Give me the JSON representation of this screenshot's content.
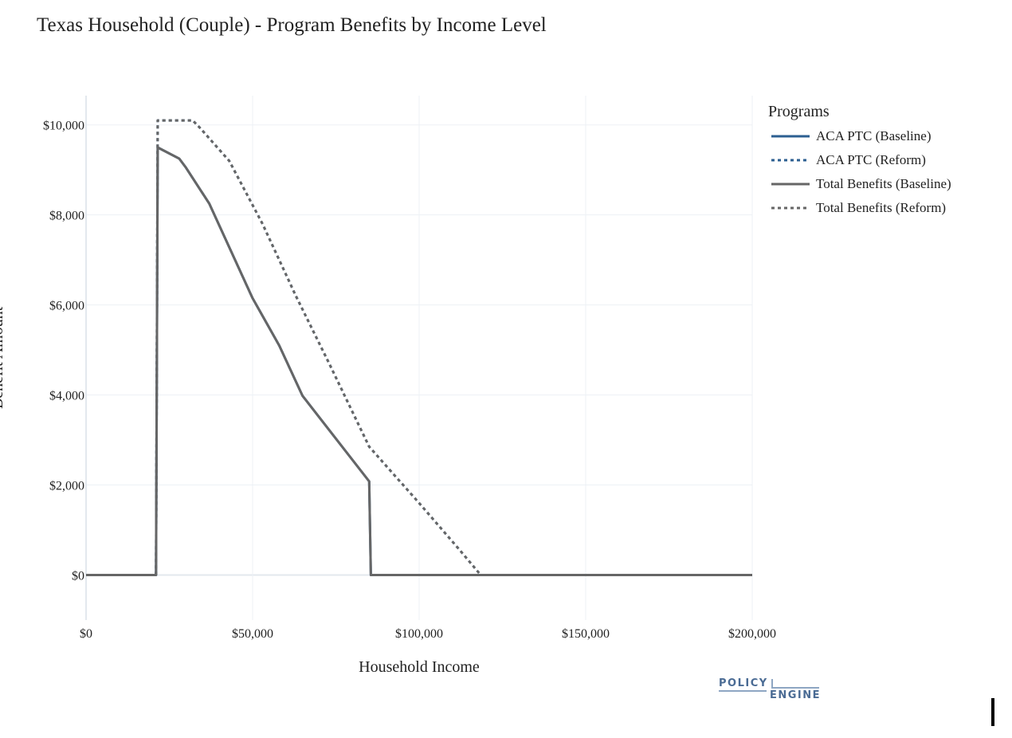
{
  "chart_data": {
    "type": "line",
    "title": "Texas Household (Couple) - Program Benefits by Income Level",
    "xlabel": "Household Income",
    "ylabel": "Benefit Amount",
    "xlim": [
      0,
      200000
    ],
    "ylim": [
      -1000,
      10650
    ],
    "x_ticks": [
      {
        "value": 0,
        "label": "$0"
      },
      {
        "value": 50000,
        "label": "$50,000"
      },
      {
        "value": 100000,
        "label": "$100,000"
      },
      {
        "value": 150000,
        "label": "$150,000"
      },
      {
        "value": 200000,
        "label": "$200,000"
      }
    ],
    "y_ticks": [
      {
        "value": 0,
        "label": "$0"
      },
      {
        "value": 2000,
        "label": "$2,000"
      },
      {
        "value": 4000,
        "label": "$4,000"
      },
      {
        "value": 6000,
        "label": "$6,000"
      },
      {
        "value": 8000,
        "label": "$8,000"
      },
      {
        "value": 10000,
        "label": "$10,000"
      }
    ],
    "grid": true,
    "legend": {
      "title": "Programs",
      "placement": "right"
    },
    "series": [
      {
        "name": "ACA PTC (Baseline)",
        "color": "#2c5f91",
        "dash": "solid",
        "x": [
          0,
          21000,
          21500,
          28000,
          30000,
          37000,
          50000,
          58000,
          65000,
          85000,
          85500,
          200000
        ],
        "y": [
          0,
          0,
          9500,
          9250,
          9050,
          8250,
          6150,
          5100,
          3980,
          2080,
          0,
          0
        ]
      },
      {
        "name": "ACA PTC (Reform)",
        "color": "#2c5f91",
        "dash": "dot",
        "x": [
          0,
          21000,
          21500,
          32000,
          34000,
          43000,
          53000,
          63000,
          73000,
          85000,
          100000,
          112000,
          118500,
          200000
        ],
        "y": [
          0,
          0,
          10100,
          10100,
          9950,
          9200,
          7800,
          6200,
          4700,
          2850,
          1600,
          570,
          0,
          0
        ]
      },
      {
        "name": "Total Benefits (Baseline)",
        "color": "#666666",
        "dash": "solid",
        "x": [
          0,
          21000,
          21500,
          28000,
          30000,
          37000,
          50000,
          58000,
          65000,
          85000,
          85500,
          200000
        ],
        "y": [
          0,
          0,
          9500,
          9250,
          9050,
          8250,
          6150,
          5100,
          3980,
          2080,
          0,
          0
        ]
      },
      {
        "name": "Total Benefits (Reform)",
        "color": "#666666",
        "dash": "dot",
        "x": [
          0,
          21000,
          21500,
          32000,
          34000,
          43000,
          53000,
          63000,
          73000,
          85000,
          100000,
          112000,
          118500,
          200000
        ],
        "y": [
          0,
          0,
          10100,
          10100,
          9950,
          9200,
          7800,
          6200,
          4700,
          2850,
          1600,
          570,
          0,
          0
        ]
      }
    ]
  },
  "logo": {
    "top": "POLICY",
    "bottom": "ENGINE"
  }
}
